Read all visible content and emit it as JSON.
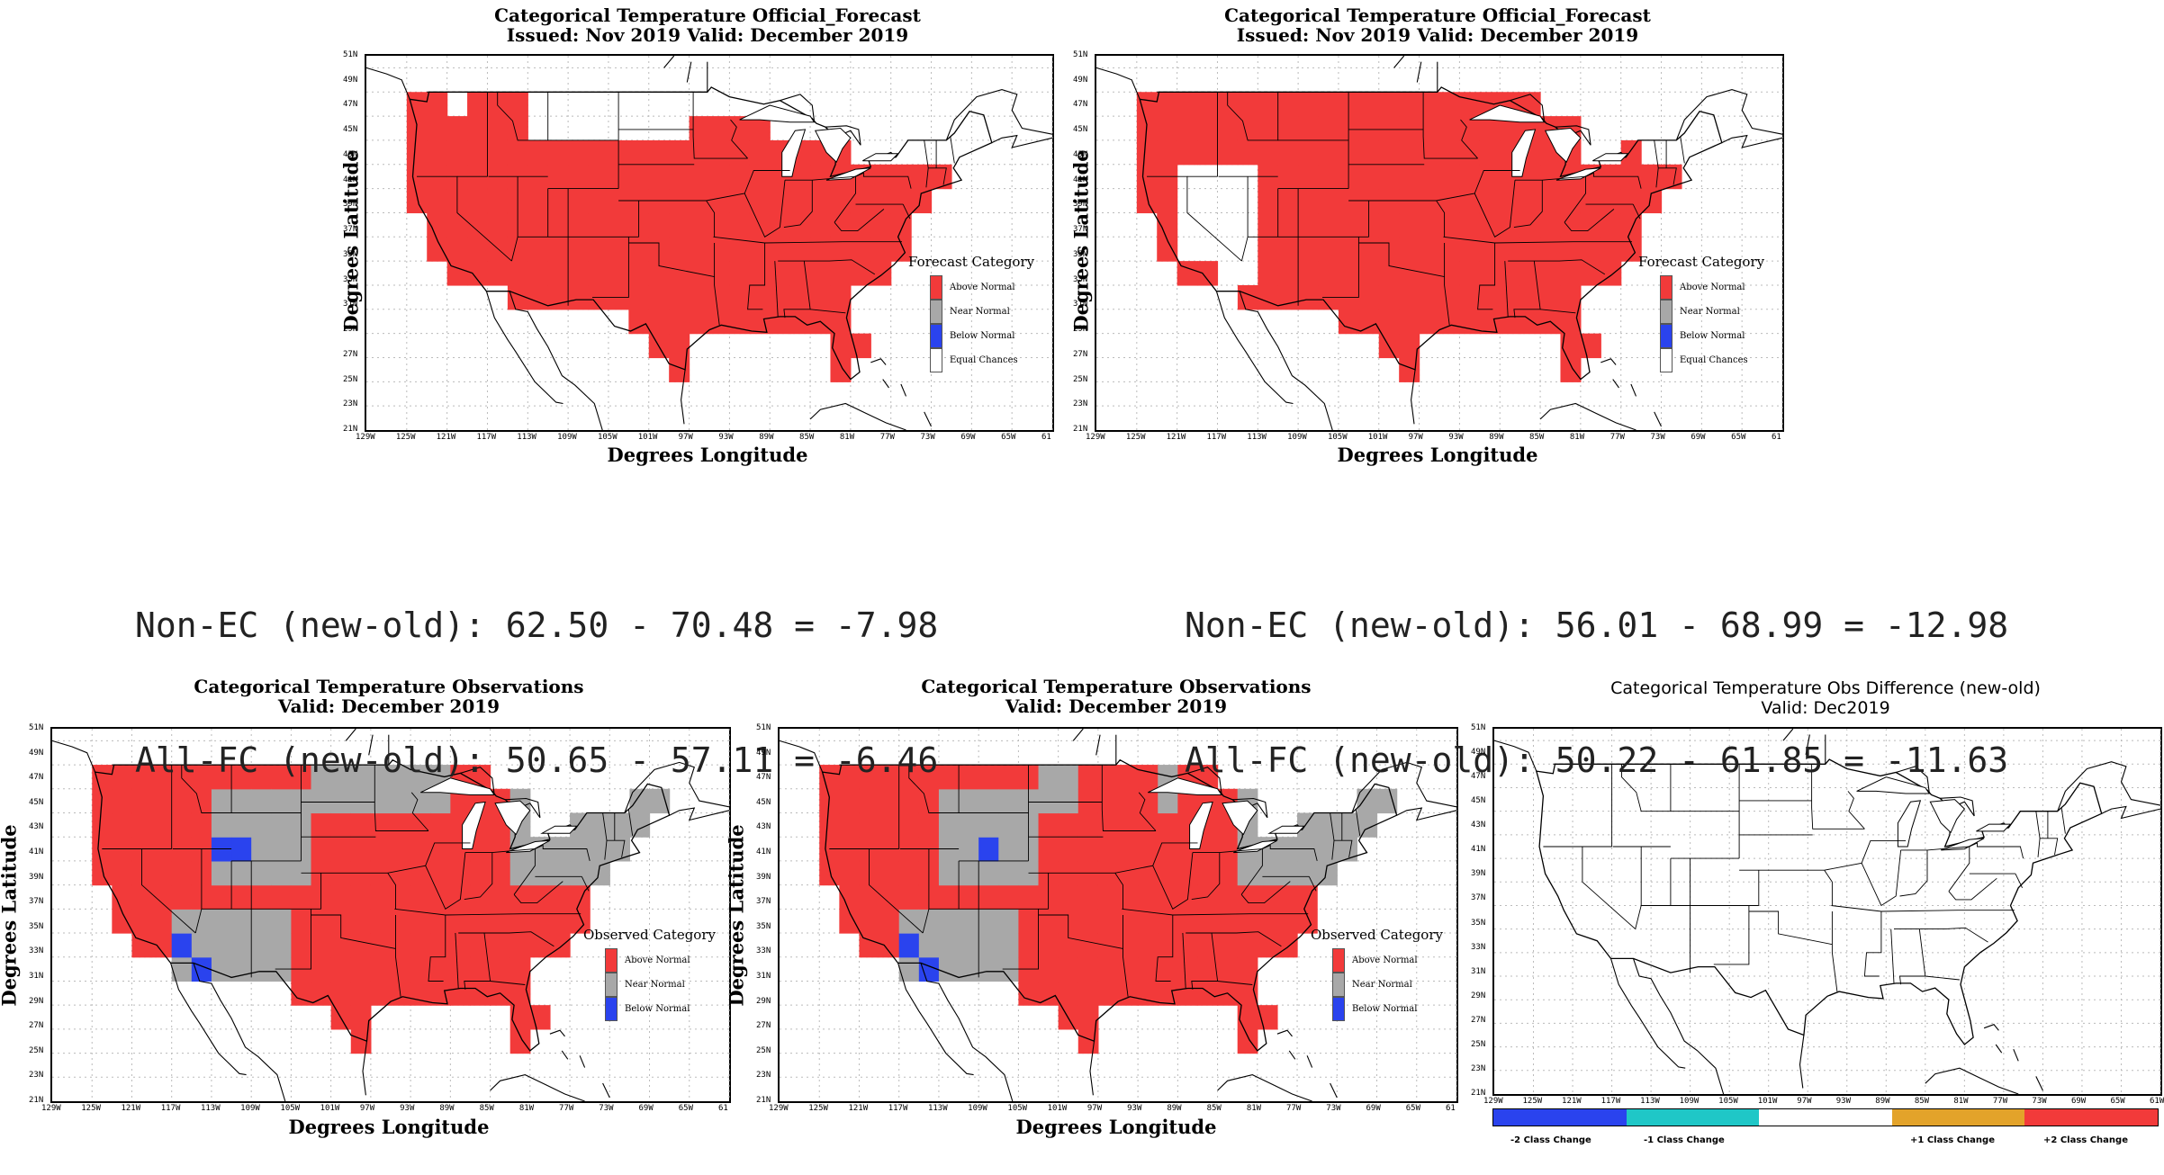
{
  "colors": {
    "above": "#f23a3a",
    "near": "#a8a8a8",
    "below": "#2a43ee",
    "ec": "#ffffff",
    "minus1": "#1fc7c7",
    "plus1": "#e3a32a",
    "minus2": "#2a43ee",
    "plus2": "#f23a3a"
  },
  "axes": {
    "xlabel": "Degrees Longitude",
    "ylabel": "Degrees Latitude",
    "xticks": [
      "129W",
      "125W",
      "121W",
      "117W",
      "113W",
      "109W",
      "105W",
      "101W",
      "97W",
      "93W",
      "89W",
      "85W",
      "81W",
      "77W",
      "73W",
      "69W",
      "65W",
      "61"
    ],
    "yticks": [
      "51N",
      "49N",
      "47N",
      "45N",
      "43N",
      "41N",
      "39N",
      "37N",
      "35N",
      "33N",
      "31N",
      "29N",
      "27N",
      "25N",
      "23N",
      "21N"
    ]
  },
  "panels": [
    {
      "id": "forecast-new",
      "title": [
        "Categorical Temperature Official_Forecast",
        "Issued: Nov 2019 Valid: December 2019"
      ],
      "legend_title": "Forecast Category",
      "legend": [
        "Above Normal",
        "Near Normal",
        "Below Normal",
        "Equal Chances"
      ],
      "legend_colors": [
        "above",
        "near",
        "below",
        "ec"
      ],
      "type": "forecast",
      "variant": "new"
    },
    {
      "id": "forecast-old",
      "title": [
        "Categorical Temperature Official_Forecast",
        "Issued: Nov 2019 Valid: December 2019"
      ],
      "legend_title": "Forecast Category",
      "legend": [
        "Above Normal",
        "Near Normal",
        "Below Normal",
        "Equal Chances"
      ],
      "legend_colors": [
        "above",
        "near",
        "below",
        "ec"
      ],
      "type": "forecast",
      "variant": "old"
    },
    {
      "id": "obs-new",
      "title": [
        "Categorical Temperature Observations",
        "Valid: December 2019"
      ],
      "legend_title": "Observed Category",
      "legend": [
        "Above Normal",
        "Near Normal",
        "Below Normal"
      ],
      "legend_colors": [
        "above",
        "near",
        "below"
      ],
      "type": "obs",
      "variant": "new"
    },
    {
      "id": "obs-old",
      "title": [
        "Categorical Temperature Observations",
        "Valid: December 2019"
      ],
      "legend_title": "Observed Category",
      "legend": [
        "Above Normal",
        "Near Normal",
        "Below Normal"
      ],
      "legend_colors": [
        "above",
        "near",
        "below"
      ],
      "type": "obs",
      "variant": "old"
    },
    {
      "id": "obs-diff",
      "title": [
        "Categorical Temperature Obs Difference (new-old)",
        "Valid: Dec2019"
      ],
      "type": "diff",
      "xticks": [
        "129W",
        "125W",
        "121W",
        "117W",
        "113W",
        "109W",
        "105W",
        "101W",
        "97W",
        "93W",
        "89W",
        "85W",
        "81W",
        "77W",
        "73W",
        "69W",
        "65W",
        "61W"
      ],
      "colorbar": [
        "-2 Class Change",
        "-1 Class Change",
        "",
        "+1 Class Change",
        "+2 Class Change"
      ]
    }
  ],
  "stats": {
    "left": [
      "Non-EC (new-old): 62.50 - 70.48 = -7.98",
      "All-FC (new-old): 50.65 - 57.11 = -6.46"
    ],
    "right": [
      "Non-EC (new-old): 56.01 - 68.99 = -12.98",
      "All-FC (new-old): 50.22 - 61.85 = -11.63"
    ]
  }
}
